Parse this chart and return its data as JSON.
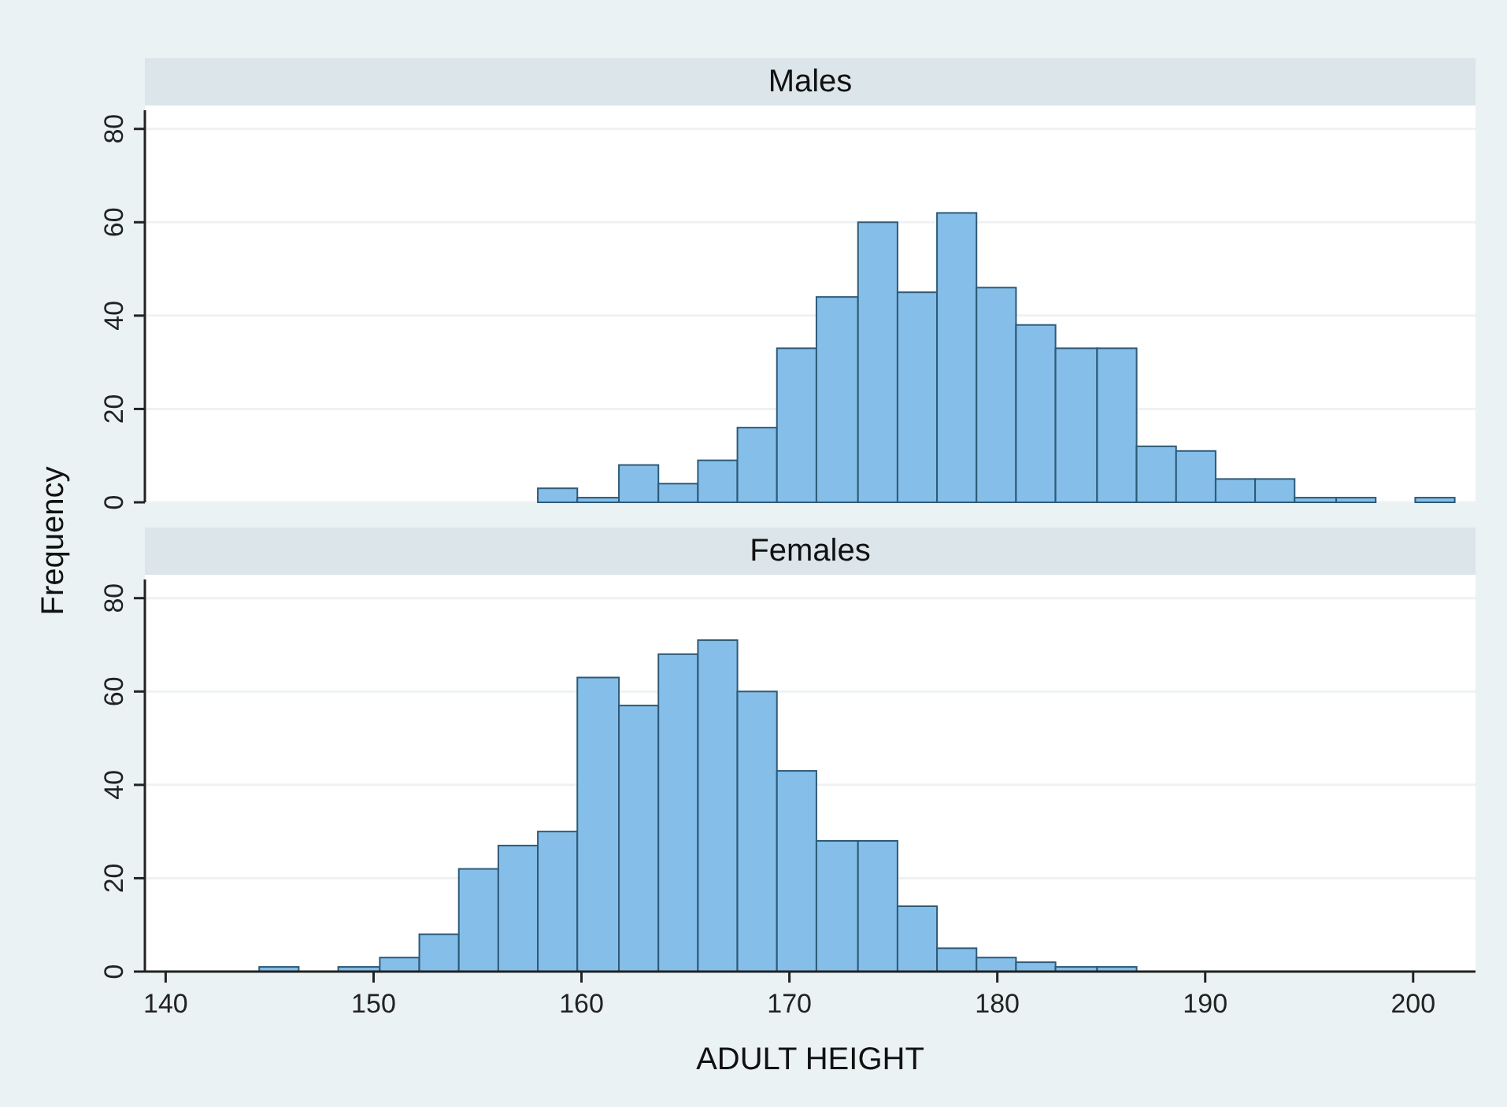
{
  "chart_data": [
    {
      "type": "histogram",
      "title": "Males",
      "ylabel": "Frequency",
      "bins": [
        157.9,
        159.8,
        161.8,
        163.7,
        165.6,
        167.5,
        169.4,
        171.3,
        173.3,
        175.2,
        177.1,
        179.0,
        180.9,
        182.8,
        184.8,
        186.7,
        188.6,
        190.5,
        192.4,
        194.3,
        196.3,
        198.2,
        200.1,
        202.0
      ],
      "values": [
        3,
        1,
        8,
        4,
        9,
        16,
        33,
        44,
        60,
        45,
        62,
        46,
        38,
        33,
        33,
        12,
        11,
        5,
        5,
        1,
        1,
        0,
        1
      ],
      "color": "#85bfe9",
      "xlim": [
        139,
        203
      ],
      "ylim": [
        0,
        84
      ],
      "yticks": [
        0,
        20,
        40,
        60,
        80
      ],
      "grid": "y",
      "tick_labels": "y"
    },
    {
      "type": "histogram",
      "title": "Females",
      "xlabel": "ADULT HEIGHT",
      "bins": [
        144.5,
        146.4,
        148.3,
        150.3,
        152.2,
        154.1,
        156.0,
        157.9,
        159.8,
        161.8,
        163.7,
        165.6,
        167.5,
        169.4,
        171.3,
        173.3,
        175.2,
        177.1,
        179.0,
        180.9,
        182.8,
        184.8,
        186.7
      ],
      "values": [
        1,
        0,
        1,
        3,
        8,
        22,
        27,
        30,
        63,
        57,
        68,
        71,
        60,
        43,
        28,
        28,
        14,
        5,
        3,
        2,
        1,
        1
      ],
      "color": "#85bfe9",
      "xlim": [
        139,
        203
      ],
      "ylim": [
        0,
        84
      ],
      "yticks": [
        0,
        20,
        40,
        60,
        80
      ],
      "xticks": [
        140,
        150,
        160,
        170,
        180,
        190,
        200
      ],
      "grid": "y"
    }
  ]
}
